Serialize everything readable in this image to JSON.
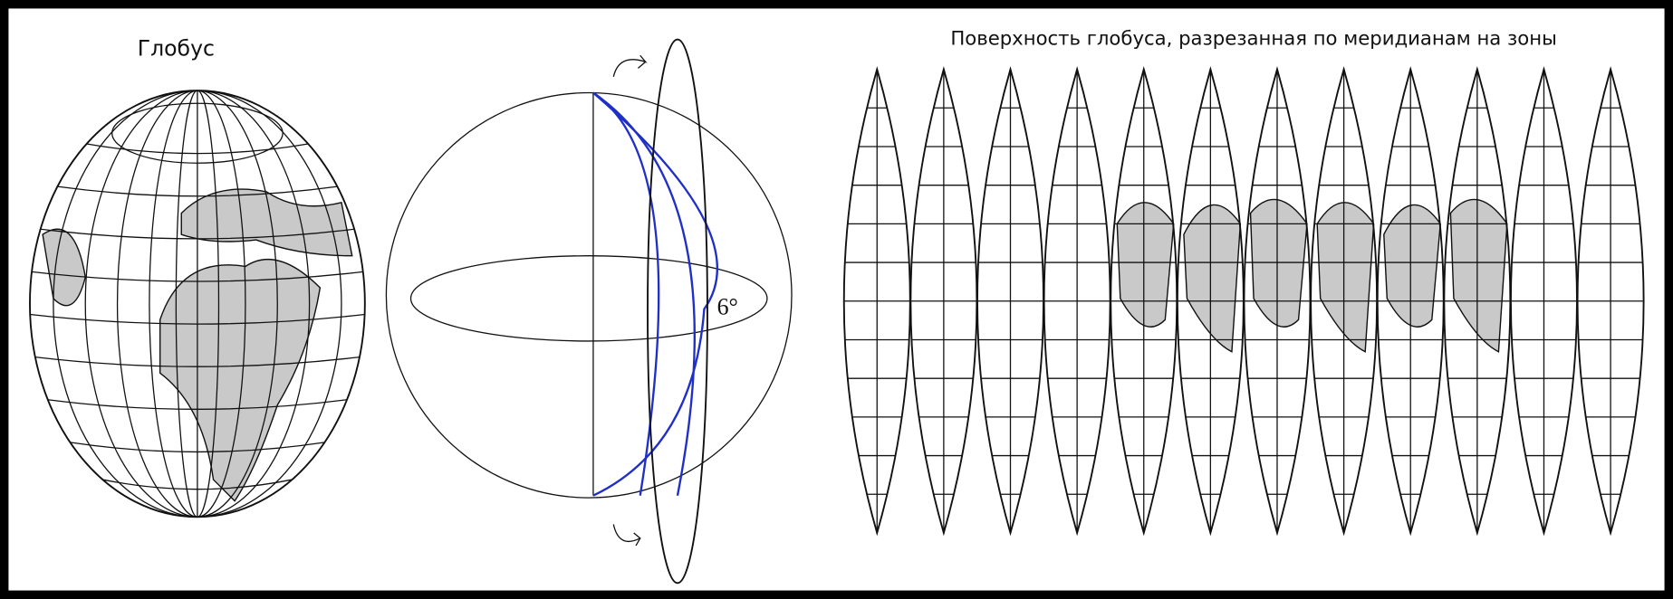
{
  "labels": {
    "globe": "Глобус",
    "angle": "6°",
    "gores_title": "Поверхность глобуса, разрезанная по меридианам на зоны"
  }
}
